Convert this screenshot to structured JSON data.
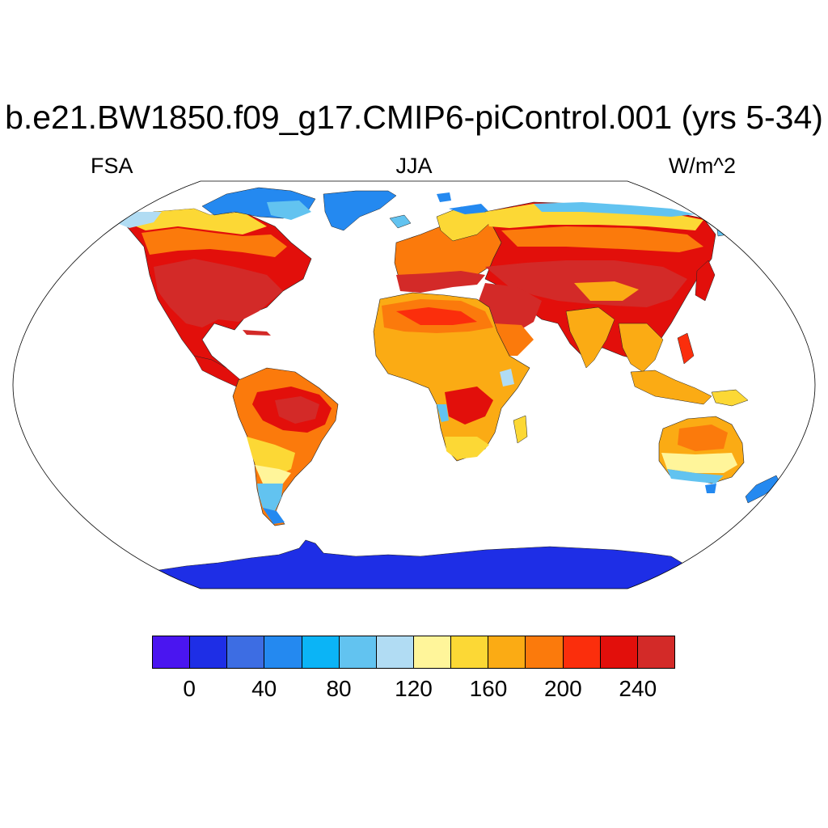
{
  "title": "b.e21.BW1850.f09_g17.CMIP6-piControl.001 (yrs 5-34)",
  "subtitle_left": "FSA",
  "subtitle_center": "JJA",
  "subtitle_right": "W/m^2",
  "colorbar": {
    "colors": [
      "#4a15f0",
      "#1e2ee6",
      "#3d6de3",
      "#2489f0",
      "#0bb4f6",
      "#62c3f0",
      "#b1dcf3",
      "#fff59a",
      "#fcd835",
      "#fbab14",
      "#fb7a0c",
      "#fb2e0c",
      "#e20f0b",
      "#d32a28"
    ],
    "tick_labels": [
      "0",
      "40",
      "80",
      "120",
      "160",
      "200",
      "240"
    ]
  },
  "map_colors": {
    "very_high": "#d32a28",
    "high": "#e20f0b",
    "red_orange": "#fb2e0c",
    "orange": "#fb7a0c",
    "amber": "#fbab14",
    "yellow": "#fcd835",
    "pale_yellow": "#fff59a",
    "pale_blue": "#b1dcf3",
    "light_blue": "#62c3f0",
    "blue": "#2489f0",
    "antarctica": "#1e2ee6"
  }
}
